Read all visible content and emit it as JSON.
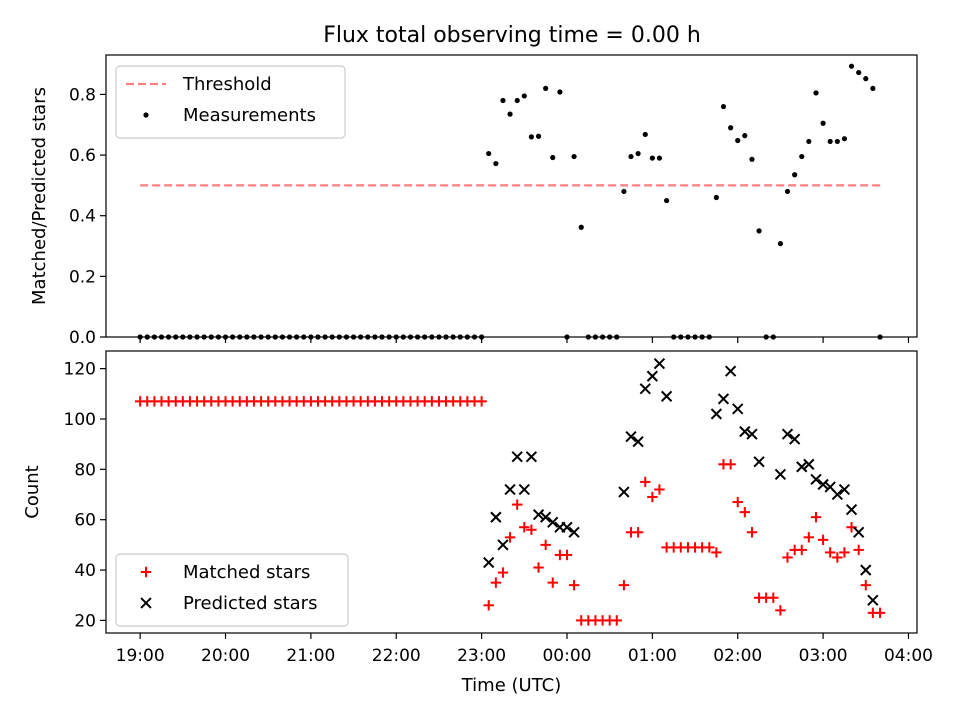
{
  "figure_title": "Flux total observing time = 0.00 h",
  "chart_data": [
    {
      "type": "scatter",
      "ylabel": "Matched/Predicted stars",
      "xlabel": "",
      "xlim": [
        18.6,
        28.1
      ],
      "ylim": [
        0,
        0.93
      ],
      "yticks": [
        0.0,
        0.2,
        0.4,
        0.6,
        0.8
      ],
      "ytick_labels": [
        "0.0",
        "0.2",
        "0.4",
        "0.6",
        "0.8"
      ],
      "xticks": [
        19,
        20,
        21,
        22,
        23,
        24,
        25,
        26,
        27,
        28
      ],
      "legend": {
        "placement": "upper-left"
      },
      "threshold": {
        "name": "Threshold",
        "value": 0.5,
        "x_range": [
          19.0,
          27.7
        ],
        "color": "#ff7f7f"
      },
      "series": [
        {
          "name": "Measurements",
          "marker": "dot",
          "color": "#000000",
          "points": [
            [
              19.0,
              0
            ],
            [
              19.083,
              0
            ],
            [
              19.167,
              0
            ],
            [
              19.25,
              0
            ],
            [
              19.333,
              0
            ],
            [
              19.417,
              0
            ],
            [
              19.5,
              0
            ],
            [
              19.583,
              0
            ],
            [
              19.667,
              0
            ],
            [
              19.75,
              0
            ],
            [
              19.833,
              0
            ],
            [
              19.917,
              0
            ],
            [
              20.0,
              0
            ],
            [
              20.083,
              0
            ],
            [
              20.167,
              0
            ],
            [
              20.25,
              0
            ],
            [
              20.333,
              0
            ],
            [
              20.417,
              0
            ],
            [
              20.5,
              0
            ],
            [
              20.583,
              0
            ],
            [
              20.667,
              0
            ],
            [
              20.75,
              0
            ],
            [
              20.833,
              0
            ],
            [
              20.917,
              0
            ],
            [
              21.0,
              0
            ],
            [
              21.083,
              0
            ],
            [
              21.167,
              0
            ],
            [
              21.25,
              0
            ],
            [
              21.333,
              0
            ],
            [
              21.417,
              0
            ],
            [
              21.5,
              0
            ],
            [
              21.583,
              0
            ],
            [
              21.667,
              0
            ],
            [
              21.75,
              0
            ],
            [
              21.833,
              0
            ],
            [
              21.917,
              0
            ],
            [
              22.0,
              0
            ],
            [
              22.083,
              0
            ],
            [
              22.167,
              0
            ],
            [
              22.25,
              0
            ],
            [
              22.333,
              0
            ],
            [
              22.417,
              0
            ],
            [
              22.5,
              0
            ],
            [
              22.583,
              0
            ],
            [
              22.667,
              0
            ],
            [
              22.75,
              0
            ],
            [
              22.833,
              0
            ],
            [
              22.917,
              0
            ],
            [
              23.0,
              0
            ],
            [
              23.083,
              0.605
            ],
            [
              23.167,
              0.572
            ],
            [
              23.25,
              0.78
            ],
            [
              23.333,
              0.735
            ],
            [
              23.417,
              0.78
            ],
            [
              23.5,
              0.795
            ],
            [
              23.583,
              0.66
            ],
            [
              23.667,
              0.662
            ],
            [
              23.75,
              0.82
            ],
            [
              23.833,
              0.592
            ],
            [
              23.917,
              0.808
            ],
            [
              24.0,
              0
            ],
            [
              24.083,
              0.595
            ],
            [
              24.167,
              0.362
            ],
            [
              24.25,
              0
            ],
            [
              24.333,
              0
            ],
            [
              24.417,
              0
            ],
            [
              24.5,
              0
            ],
            [
              24.583,
              0
            ],
            [
              24.667,
              0.48
            ],
            [
              24.75,
              0.595
            ],
            [
              24.833,
              0.605
            ],
            [
              24.917,
              0.668
            ],
            [
              25.0,
              0.59
            ],
            [
              25.083,
              0.59
            ],
            [
              25.167,
              0.45
            ],
            [
              25.25,
              0
            ],
            [
              25.333,
              0
            ],
            [
              25.417,
              0
            ],
            [
              25.5,
              0
            ],
            [
              25.583,
              0
            ],
            [
              25.667,
              0
            ],
            [
              25.75,
              0.46
            ],
            [
              25.833,
              0.76
            ],
            [
              25.917,
              0.69
            ],
            [
              26.0,
              0.648
            ],
            [
              26.083,
              0.664
            ],
            [
              26.167,
              0.586
            ],
            [
              26.25,
              0.35
            ],
            [
              26.333,
              0
            ],
            [
              26.417,
              0
            ],
            [
              26.5,
              0.308
            ],
            [
              26.583,
              0.48
            ],
            [
              26.667,
              0.535
            ],
            [
              26.75,
              0.595
            ],
            [
              26.833,
              0.645
            ],
            [
              26.917,
              0.805
            ],
            [
              27.0,
              0.705
            ],
            [
              27.083,
              0.645
            ],
            [
              27.167,
              0.645
            ],
            [
              27.25,
              0.654
            ],
            [
              27.333,
              0.893
            ],
            [
              27.417,
              0.872
            ],
            [
              27.5,
              0.852
            ],
            [
              27.583,
              0.82
            ],
            [
              27.667,
              0
            ]
          ]
        }
      ]
    },
    {
      "type": "scatter",
      "ylabel": "Count",
      "xlabel": "Time (UTC)",
      "xlim": [
        18.6,
        28.1
      ],
      "ylim": [
        15,
        127
      ],
      "yticks": [
        20,
        40,
        60,
        80,
        100,
        120
      ],
      "ytick_labels": [
        "20",
        "40",
        "60",
        "80",
        "100",
        "120"
      ],
      "xticks": [
        19,
        20,
        21,
        22,
        23,
        24,
        25,
        26,
        27,
        28
      ],
      "xtick_labels": [
        "19:00",
        "20:00",
        "21:00",
        "22:00",
        "23:00",
        "00:00",
        "01:00",
        "02:00",
        "03:00",
        "04:00"
      ],
      "legend": {
        "placement": "lower-left"
      },
      "series": [
        {
          "name": "Matched stars",
          "marker": "plus",
          "color": "#ff0000",
          "points": [
            [
              19.0,
              107
            ],
            [
              19.083,
              107
            ],
            [
              19.167,
              107
            ],
            [
              19.25,
              107
            ],
            [
              19.333,
              107
            ],
            [
              19.417,
              107
            ],
            [
              19.5,
              107
            ],
            [
              19.583,
              107
            ],
            [
              19.667,
              107
            ],
            [
              19.75,
              107
            ],
            [
              19.833,
              107
            ],
            [
              19.917,
              107
            ],
            [
              20.0,
              107
            ],
            [
              20.083,
              107
            ],
            [
              20.167,
              107
            ],
            [
              20.25,
              107
            ],
            [
              20.333,
              107
            ],
            [
              20.417,
              107
            ],
            [
              20.5,
              107
            ],
            [
              20.583,
              107
            ],
            [
              20.667,
              107
            ],
            [
              20.75,
              107
            ],
            [
              20.833,
              107
            ],
            [
              20.917,
              107
            ],
            [
              21.0,
              107
            ],
            [
              21.083,
              107
            ],
            [
              21.167,
              107
            ],
            [
              21.25,
              107
            ],
            [
              21.333,
              107
            ],
            [
              21.417,
              107
            ],
            [
              21.5,
              107
            ],
            [
              21.583,
              107
            ],
            [
              21.667,
              107
            ],
            [
              21.75,
              107
            ],
            [
              21.833,
              107
            ],
            [
              21.917,
              107
            ],
            [
              22.0,
              107
            ],
            [
              22.083,
              107
            ],
            [
              22.167,
              107
            ],
            [
              22.25,
              107
            ],
            [
              22.333,
              107
            ],
            [
              22.417,
              107
            ],
            [
              22.5,
              107
            ],
            [
              22.583,
              107
            ],
            [
              22.667,
              107
            ],
            [
              22.75,
              107
            ],
            [
              22.833,
              107
            ],
            [
              22.917,
              107
            ],
            [
              23.0,
              107
            ],
            [
              23.083,
              26
            ],
            [
              23.167,
              35
            ],
            [
              23.25,
              39
            ],
            [
              23.333,
              53
            ],
            [
              23.417,
              66
            ],
            [
              23.5,
              57
            ],
            [
              23.583,
              56
            ],
            [
              23.667,
              41
            ],
            [
              23.75,
              50
            ],
            [
              23.833,
              35
            ],
            [
              23.917,
              46
            ],
            [
              24.0,
              46
            ],
            [
              24.083,
              34
            ],
            [
              24.167,
              20
            ],
            [
              24.25,
              20
            ],
            [
              24.333,
              20
            ],
            [
              24.417,
              20
            ],
            [
              24.5,
              20
            ],
            [
              24.583,
              20
            ],
            [
              24.667,
              34
            ],
            [
              24.75,
              55
            ],
            [
              24.833,
              55
            ],
            [
              24.917,
              75
            ],
            [
              25.0,
              69
            ],
            [
              25.083,
              72
            ],
            [
              25.167,
              49
            ],
            [
              25.25,
              49
            ],
            [
              25.333,
              49
            ],
            [
              25.417,
              49
            ],
            [
              25.5,
              49
            ],
            [
              25.583,
              49
            ],
            [
              25.667,
              49
            ],
            [
              25.75,
              47
            ],
            [
              25.833,
              82
            ],
            [
              25.917,
              82
            ],
            [
              26.0,
              67
            ],
            [
              26.083,
              63
            ],
            [
              26.167,
              55
            ],
            [
              26.25,
              29
            ],
            [
              26.333,
              29
            ],
            [
              26.417,
              29
            ],
            [
              26.5,
              24
            ],
            [
              26.583,
              45
            ],
            [
              26.667,
              48
            ],
            [
              26.75,
              48
            ],
            [
              26.833,
              53
            ],
            [
              26.917,
              61
            ],
            [
              27.0,
              52
            ],
            [
              27.083,
              47
            ],
            [
              27.167,
              45
            ],
            [
              27.25,
              47
            ],
            [
              27.333,
              57
            ],
            [
              27.417,
              48
            ],
            [
              27.5,
              34
            ],
            [
              27.583,
              23
            ],
            [
              27.667,
              23
            ]
          ]
        },
        {
          "name": "Predicted stars",
          "marker": "x",
          "color": "#000000",
          "points": [
            [
              23.083,
              43
            ],
            [
              23.167,
              61
            ],
            [
              23.25,
              50
            ],
            [
              23.333,
              72
            ],
            [
              23.417,
              85
            ],
            [
              23.5,
              72
            ],
            [
              23.583,
              85
            ],
            [
              23.667,
              62
            ],
            [
              23.75,
              61
            ],
            [
              23.833,
              59
            ],
            [
              23.917,
              57
            ],
            [
              24.0,
              57
            ],
            [
              24.083,
              55
            ],
            [
              24.667,
              71
            ],
            [
              24.75,
              93
            ],
            [
              24.833,
              91
            ],
            [
              24.917,
              112
            ],
            [
              25.0,
              117
            ],
            [
              25.083,
              122
            ],
            [
              25.167,
              109
            ],
            [
              25.75,
              102
            ],
            [
              25.833,
              108
            ],
            [
              25.917,
              119
            ],
            [
              26.0,
              104
            ],
            [
              26.083,
              95
            ],
            [
              26.167,
              94
            ],
            [
              26.25,
              83
            ],
            [
              26.5,
              78
            ],
            [
              26.583,
              94
            ],
            [
              26.667,
              92
            ],
            [
              26.75,
              81
            ],
            [
              26.833,
              82
            ],
            [
              26.917,
              76
            ],
            [
              27.0,
              74
            ],
            [
              27.083,
              73
            ],
            [
              27.167,
              70
            ],
            [
              27.25,
              72
            ],
            [
              27.333,
              64
            ],
            [
              27.417,
              55
            ],
            [
              27.5,
              40
            ],
            [
              27.583,
              28
            ]
          ]
        }
      ]
    }
  ]
}
